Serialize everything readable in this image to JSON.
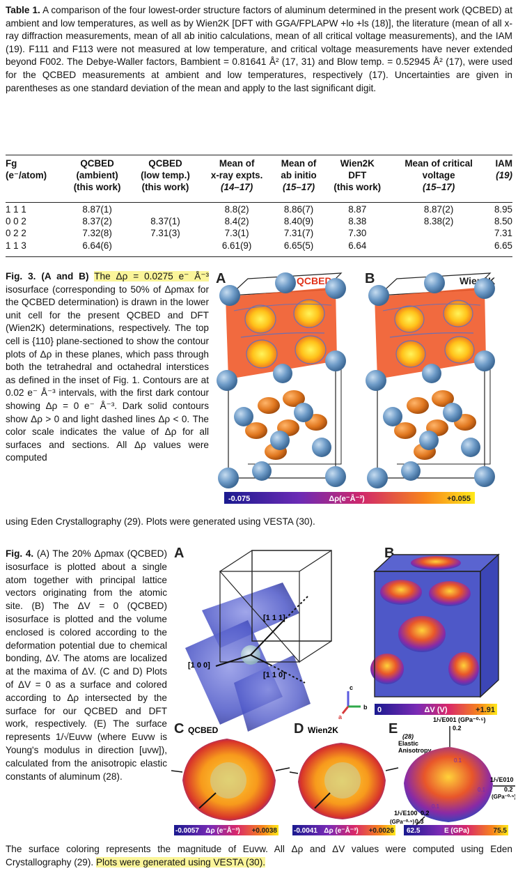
{
  "table1": {
    "caption_label": "Table 1.",
    "caption_text": "A comparison of the four lowest-order structure factors of aluminum determined in the present work (QCBED) at ambient and low temperatures, as well as by Wien2K [DFT with GGA/FPLAPW +lo +ls (18)], the literature (mean of all x-ray diffraction measurements, mean of all ab initio calculations, mean of all critical voltage measurements), and the IAM (19). F111 and F113 were not measured at low temperature, and critical voltage measurements have never extended beyond F002. The Debye-Waller factors, Bambient = 0.81641 Å² (17, 31) and Blow temp. = 0.52945 Å² (17), were used for the QCBED measurements at ambient and low temperatures, respectively (17). Uncertainties are given in parentheses as one standard deviation of the mean and apply to the last significant digit.",
    "headers": [
      [
        "Fg",
        "(e⁻/atom)"
      ],
      [
        "QCBED",
        "(ambient)",
        "(this work)"
      ],
      [
        "QCBED",
        "(low temp.)",
        "(this work)"
      ],
      [
        "Mean of",
        "x-ray expts.",
        "(14–17)"
      ],
      [
        "Mean of",
        "ab initio",
        "(15–17)"
      ],
      [
        "Wien2K",
        "DFT",
        "(this work)"
      ],
      [
        "Mean of critical",
        "voltage",
        "(15–17)"
      ],
      [
        "IAM",
        "(19)"
      ]
    ],
    "rows": [
      [
        "1 1 1",
        "8.87(1)",
        "",
        "8.8(2)",
        "8.86(7)",
        "8.87",
        "8.87(2)",
        "8.95"
      ],
      [
        "0 0 2",
        "8.37(2)",
        "8.37(1)",
        "8.4(2)",
        "8.40(9)",
        "8.38",
        "8.38(2)",
        "8.50"
      ],
      [
        "0 2 2",
        "7.32(8)",
        "7.31(3)",
        "7.3(1)",
        "7.31(7)",
        "7.30",
        "",
        "7.31"
      ],
      [
        "1 1 3",
        "6.64(6)",
        "",
        "6.61(9)",
        "6.65(5)",
        "6.64",
        "",
        "6.65"
      ]
    ]
  },
  "fig3": {
    "label": "Fig. 3.",
    "paren": "(A and B)",
    "highlight": "The Δρ = 0.0275 e⁻ Å⁻³",
    "text": "isosurface (corresponding to 50% of Δρmax for the QCBED determination) is drawn in the lower unit cell for the present QCBED and DFT (Wien2K) determinations, respectively. The top cell is {110} plane-sectioned to show the contour plots of Δρ in these planes, which pass through both the tetrahedral and octahedral interstices as defined in the inset of Fig. 1. Contours are at 0.02 e⁻ Å⁻³ intervals, with the first dark contour showing Δρ = 0 e⁻ Å⁻³. Dark solid contours show Δρ > 0 and light dashed lines Δρ < 0. The color scale indicates the value of Δρ for all surfaces and sections. All Δρ values were computed",
    "tail": "using Eden Crystallography (29). Plots were generated using VESTA (30).",
    "panel_a": "A",
    "panel_a_title": "QCBED",
    "panel_b": "B",
    "panel_b_title": "Wien2K",
    "scale_min": "-0.075",
    "scale_label": "Δρ(e⁻Å⁻³)",
    "scale_max": "+0.055",
    "colors": {
      "atom": "#6f9cc8",
      "lobe": "#e0771f",
      "plane": "#e8552a",
      "hot": "#ffd21a"
    }
  },
  "fig4": {
    "label": "Fig. 4.",
    "text": "(A) The 20% Δρmax (QCBED) isosurface is plotted about a single atom together with principal lattice vectors originating from the atomic site. (B) The ΔV = 0 (QCBED) isosurface is plotted and the volume enclosed is colored according to the deformation potential due to chemical bonding, ΔV. The atoms are localized at the maxima of ΔV. (C and D) Plots of ΔV = 0 as a surface and colored according to Δρ intersected by the surface for our QCBED and DFT work, respectively. (E) The surface represents 1/√Euvw (where Euvw is Young's modulus in direction [uvw]), calculated from the anisotropic elastic constants of aluminum (28).",
    "tail_text": "The surface coloring represents the magnitude of Euvw. All Δρ and ΔV values were computed using Eden Crystallography (29).",
    "tail_highlight": "Plots were generated using VESTA (30).",
    "panel_a": "A",
    "panel_b": "B",
    "panel_c": "C",
    "panel_c_title": "QCBED",
    "panel_d": "D",
    "panel_d_title": "Wien2K",
    "panel_e": "E",
    "vec_111": "[1 1 1]",
    "vec_100": "[1 0 0]",
    "vec_110": "[1 1 0]",
    "axis_a": "a",
    "axis_b": "b",
    "axis_c": "c",
    "b_scale_min": "0",
    "b_scale_label": "ΔV (V)",
    "b_scale_max": "+1.91",
    "c_scale_min": "-0.0057",
    "c_scale_label": "Δρ (e⁻Å⁻³)",
    "c_scale_max": "+0.0038",
    "d_scale_min": "-0.0041",
    "d_scale_label": "Δρ (e⁻Å⁻³)",
    "d_scale_max": "+0.0026",
    "e_scale_min": "62.5",
    "e_scale_label": "E (GPa)",
    "e_scale_max": "75.5",
    "e_ref": "(28)",
    "e_title1": "Elastic",
    "e_title2": "Anisotropy",
    "e_axis_top": "1/√E001 (GPa⁻⁰·⁵)",
    "e_tick_02": "0.2",
    "e_tick_01": "0.1",
    "e_axis_right": "1/√E010",
    "e_right_02": "0.2",
    "e_right_unit": "(GPa⁻⁰·⁵)",
    "e_right_01": "0.1",
    "e_axis_bottom": "1/√E100",
    "e_bottom_unit": "(GPa⁻⁰·⁵)",
    "e_bottom_03": "0.3",
    "e_bottom_02": "0.2",
    "e_bottom_01": "0.1"
  }
}
